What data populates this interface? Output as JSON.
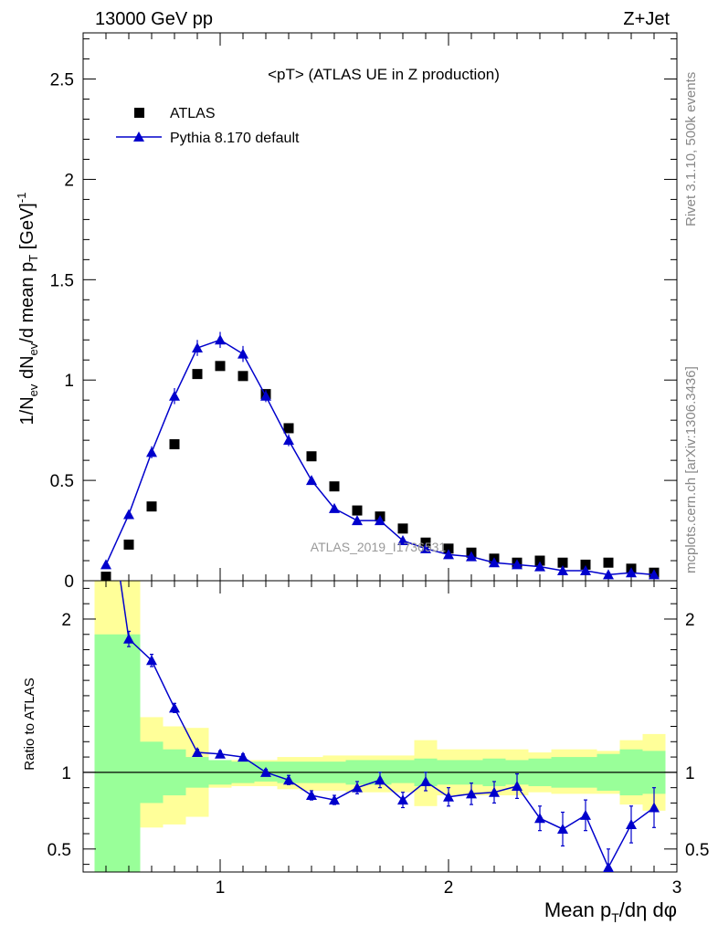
{
  "header": {
    "left_label": "13000 GeV pp",
    "right_label": "Z+Jet",
    "side_label_top": "Rivet 3.1.10,  500k events",
    "side_label_bottom": "mcplots.cern.ch [arXiv:1306.3436]"
  },
  "chart_data": [
    {
      "type": "scatter",
      "panel": "main",
      "title": "<pT> (ATLAS UE in Z production)",
      "watermark": "ATLAS_2019_I1736531",
      "xlabel": "Mean p_T/dη dφ",
      "ylabel": "1/N_ev dN_ev/d mean p_T [GeV]^-1",
      "xlim": [
        0.4,
        3.0
      ],
      "ylim": [
        0,
        2.73
      ],
      "y_ticks": [
        0,
        0.5,
        1,
        1.5,
        2,
        2.5
      ],
      "y_tick_labels": [
        "0",
        "0.5",
        "1",
        "1.5",
        "2",
        "2.5"
      ],
      "legend_placement": "top-left",
      "series": [
        {
          "name": "ATLAS",
          "marker": "square",
          "color": "#000000",
          "x": [
            0.5,
            0.6,
            0.7,
            0.8,
            0.9,
            1.0,
            1.1,
            1.2,
            1.3,
            1.4,
            1.5,
            1.6,
            1.7,
            1.8,
            1.9,
            2.0,
            2.1,
            2.2,
            2.3,
            2.4,
            2.5,
            2.6,
            2.7,
            2.8,
            2.9
          ],
          "values": [
            0.02,
            0.18,
            0.37,
            0.68,
            1.03,
            1.07,
            1.02,
            0.93,
            0.76,
            0.62,
            0.47,
            0.35,
            0.32,
            0.26,
            0.19,
            0.16,
            0.14,
            0.11,
            0.09,
            0.1,
            0.09,
            0.08,
            0.09,
            0.06,
            0.04
          ]
        },
        {
          "name": "Pythia 8.170 default",
          "marker": "triangle",
          "color": "#0000cc",
          "x": [
            0.5,
            0.6,
            0.7,
            0.8,
            0.9,
            1.0,
            1.1,
            1.2,
            1.3,
            1.4,
            1.5,
            1.6,
            1.7,
            1.8,
            1.9,
            2.0,
            2.1,
            2.2,
            2.3,
            2.4,
            2.5,
            2.6,
            2.7,
            2.8,
            2.9
          ],
          "values": [
            0.08,
            0.33,
            0.64,
            0.92,
            1.16,
            1.2,
            1.13,
            0.92,
            0.7,
            0.5,
            0.36,
            0.3,
            0.3,
            0.2,
            0.16,
            0.13,
            0.12,
            0.09,
            0.08,
            0.07,
            0.05,
            0.05,
            0.03,
            0.04,
            0.03
          ],
          "errors": [
            0.01,
            0.02,
            0.03,
            0.04,
            0.04,
            0.04,
            0.04,
            0.03,
            0.03,
            0.02,
            0.02,
            0.02,
            0.02,
            0.01,
            0.01,
            0.01,
            0.01,
            0.01,
            0.01,
            0.01,
            0.01,
            0.01,
            0.01,
            0.01,
            0.01
          ]
        }
      ]
    },
    {
      "type": "line",
      "panel": "ratio",
      "xlabel": "Mean p_T/dη dφ",
      "ylabel": "Ratio to ATLAS",
      "xlim": [
        0.4,
        3.0
      ],
      "ylim": [
        0.35,
        2.25
      ],
      "x_ticks": [
        1,
        2,
        3
      ],
      "x_tick_labels": [
        "1",
        "2",
        "3"
      ],
      "y_ticks": [
        0.5,
        1,
        2
      ],
      "y_tick_labels": [
        "0.5",
        "1",
        "2"
      ],
      "reference_line": 1,
      "band_colors": {
        "inner": "#99ff99",
        "outer": "#ffff99"
      },
      "bands": {
        "x_low": [
          0.45,
          0.55,
          0.65,
          0.75,
          0.85,
          0.95,
          1.05,
          1.15,
          1.25,
          1.35,
          1.45,
          1.55,
          1.65,
          1.75,
          1.85,
          1.95,
          2.05,
          2.15,
          2.25,
          2.35,
          2.45,
          2.55,
          2.65,
          2.75,
          2.85
        ],
        "x_high": [
          0.55,
          0.65,
          0.75,
          0.85,
          0.95,
          1.05,
          1.15,
          1.25,
          1.35,
          1.45,
          1.55,
          1.65,
          1.75,
          1.85,
          1.95,
          2.05,
          2.15,
          2.25,
          2.35,
          2.45,
          2.55,
          2.65,
          2.75,
          2.85,
          2.95
        ],
        "inner_low": [
          0.35,
          0.35,
          0.8,
          0.85,
          0.9,
          0.92,
          0.93,
          0.94,
          0.93,
          0.93,
          0.93,
          0.92,
          0.92,
          0.93,
          0.91,
          0.92,
          0.92,
          0.91,
          0.92,
          0.91,
          0.9,
          0.9,
          0.88,
          0.85,
          0.86
        ],
        "inner_high": [
          1.9,
          1.9,
          1.2,
          1.15,
          1.1,
          1.08,
          1.07,
          1.07,
          1.07,
          1.07,
          1.07,
          1.08,
          1.08,
          1.08,
          1.09,
          1.08,
          1.08,
          1.09,
          1.08,
          1.09,
          1.1,
          1.1,
          1.12,
          1.15,
          1.14
        ],
        "outer_low": [
          0.35,
          0.35,
          0.64,
          0.66,
          0.71,
          0.9,
          0.91,
          0.91,
          0.89,
          0.88,
          0.88,
          0.87,
          0.87,
          0.87,
          0.78,
          0.85,
          0.85,
          0.85,
          0.85,
          0.87,
          0.86,
          0.86,
          0.86,
          0.79,
          0.75
        ],
        "outer_high": [
          2.25,
          2.25,
          1.36,
          1.3,
          1.29,
          1.06,
          1.08,
          1.08,
          1.1,
          1.1,
          1.11,
          1.11,
          1.11,
          1.11,
          1.21,
          1.15,
          1.15,
          1.15,
          1.15,
          1.13,
          1.15,
          1.15,
          1.14,
          1.21,
          1.25
        ]
      },
      "series": [
        {
          "name": "Pythia 8.170 default",
          "color": "#0000cc",
          "x": [
            0.5,
            0.6,
            0.7,
            0.8,
            0.9,
            1.0,
            1.1,
            1.2,
            1.3,
            1.4,
            1.5,
            1.6,
            1.7,
            1.8,
            1.9,
            2.0,
            2.1,
            2.2,
            2.3,
            2.4,
            2.5,
            2.6,
            2.7,
            2.8,
            2.9
          ],
          "values": [
            2.9,
            1.87,
            1.73,
            1.42,
            1.13,
            1.12,
            1.1,
            1.0,
            0.95,
            0.85,
            0.82,
            0.9,
            0.95,
            0.82,
            0.94,
            0.84,
            0.86,
            0.87,
            0.91,
            0.7,
            0.63,
            0.72,
            0.38,
            0.66,
            0.77
          ],
          "errors": [
            0.05,
            0.05,
            0.04,
            0.03,
            0.02,
            0.02,
            0.02,
            0.02,
            0.03,
            0.03,
            0.03,
            0.04,
            0.05,
            0.05,
            0.06,
            0.06,
            0.07,
            0.07,
            0.08,
            0.08,
            0.11,
            0.1,
            0.12,
            0.12,
            0.13
          ]
        }
      ]
    }
  ]
}
